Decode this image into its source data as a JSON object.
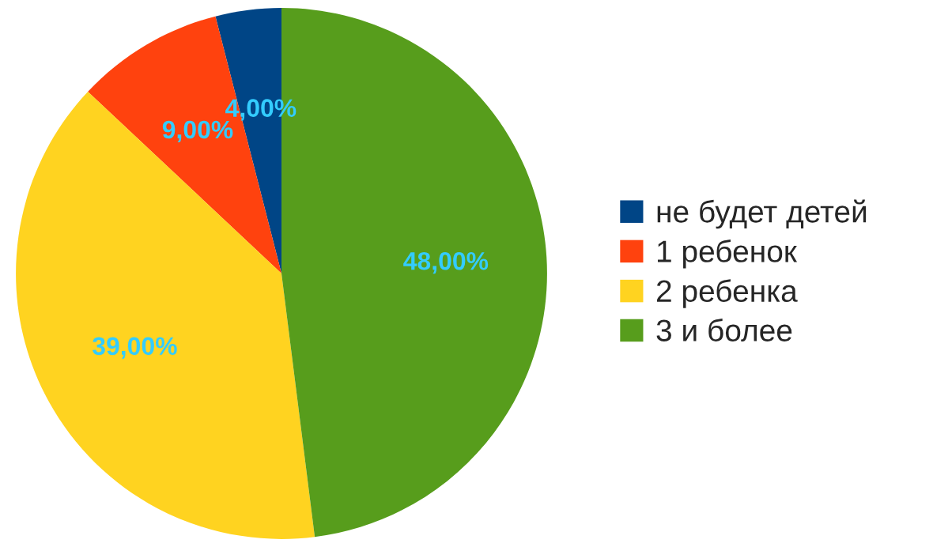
{
  "chart_data": {
    "type": "pie",
    "categories": [
      "не будет детей",
      "1 ребенок",
      "2 ребенка",
      "3 и более"
    ],
    "values": [
      4,
      9,
      39,
      48
    ],
    "colors": [
      "#004586",
      "#ff420e",
      "#ffd320",
      "#579d1c"
    ],
    "value_labels": [
      "4,00%",
      "9,00%",
      "39,00%",
      "48,00%"
    ],
    "legend": "right"
  }
}
